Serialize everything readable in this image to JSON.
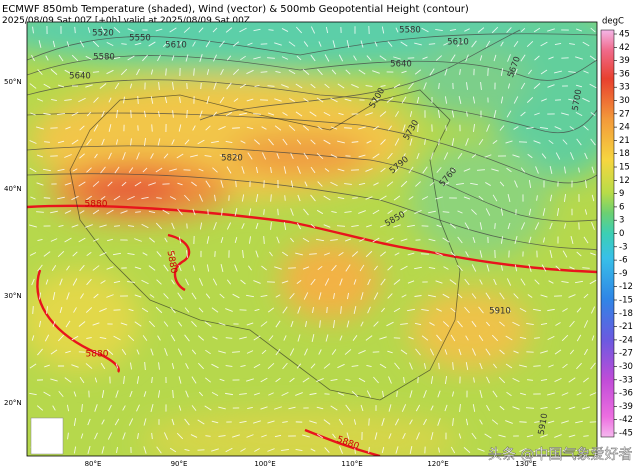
{
  "header": {
    "title": "ECMWF 850mb Temperature (shaded), Wind (vector) & 500mb Geopotential Height (contour)",
    "subtitle": "2025/08/09 Sat 00Z [+0h] valid at 2025/08/09 Sat 00Z"
  },
  "colorbar": {
    "unit": "degC",
    "labels": [
      45,
      42,
      39,
      36,
      33,
      30,
      27,
      24,
      21,
      18,
      15,
      12,
      9,
      6,
      3,
      0,
      -3,
      -6,
      -9,
      -12,
      -15,
      -18,
      -21,
      -24,
      -27,
      -30,
      -33,
      -36,
      -39,
      -42,
      -45
    ]
  },
  "map": {
    "lat_labels": [
      "50°N",
      "40°N",
      "30°N",
      "20°N"
    ],
    "lon_labels": [
      "80°E",
      "90°E",
      "100°E",
      "110°E",
      "120°E",
      "130°E"
    ],
    "contour_labels": [
      "5520",
      "5550",
      "5580",
      "5610",
      "5640",
      "5580",
      "5610",
      "5640",
      "5670",
      "5700",
      "5700",
      "5730",
      "5760",
      "5790",
      "5820",
      "5850",
      "5880",
      "5880",
      "5880",
      "5880",
      "5910",
      "5910"
    ]
  },
  "watermark": "头条 @中国气象爱好者"
}
